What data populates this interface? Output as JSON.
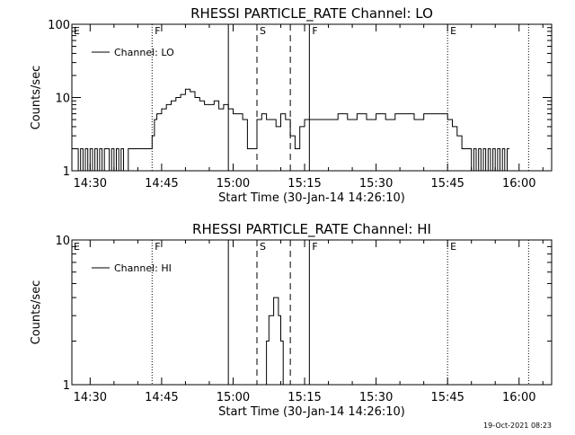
{
  "footer": {
    "timestamp": "19-Oct-2021 08:23"
  },
  "chart_data": [
    {
      "type": "line",
      "title": "RHESSI PARTICLE_RATE Channel: LO",
      "xlabel": "Start Time (30-Jan-14 14:26:10)",
      "ylabel": "Counts/sec",
      "yscale": "log",
      "ylim": [
        1,
        100
      ],
      "xlim": [
        "14:26:10",
        "16:06:50"
      ],
      "x_ticks": [
        "14:30",
        "14:45",
        "15:00",
        "15:15",
        "15:30",
        "15:45",
        "16:00"
      ],
      "y_ticks": [
        "1",
        "10",
        "100"
      ],
      "legend": {
        "label": "Channel: LO",
        "position": "top-left"
      },
      "event_markers": [
        {
          "time": "14:43:00",
          "label": "F",
          "style": "dotted"
        },
        {
          "time": "14:59:00",
          "label": "",
          "style": "solid"
        },
        {
          "time": "15:05:00",
          "label": "S",
          "style": "dashed"
        },
        {
          "time": "15:12:00",
          "label": "",
          "style": "dashed"
        },
        {
          "time": "15:16:00",
          "label": "F",
          "style": "solid"
        },
        {
          "time": "15:45:00",
          "label": "E",
          "style": "dotted"
        },
        {
          "time": "16:02:00",
          "label": "",
          "style": "dotted"
        }
      ],
      "series": [
        {
          "x": [
            "14:26:10",
            "14:27:00",
            "14:27:30",
            "14:28:00",
            "14:28:30",
            "14:29:00",
            "14:29:30",
            "14:30:00",
            "14:30:30",
            "14:31:00",
            "14:31:30",
            "14:32:00",
            "14:32:30",
            "14:33:00",
            "14:33:30",
            "14:34:00",
            "14:34:30",
            "14:35:00",
            "14:35:30",
            "14:36:00",
            "14:36:30",
            "14:37:00",
            "14:38:00",
            "14:39:00",
            "14:40:00",
            "14:41:00",
            "14:42:00",
            "14:42:40",
            "14:43:00",
            "14:43:30",
            "14:44:00",
            "14:45:00",
            "14:46:00",
            "14:47:00",
            "14:48:00",
            "14:49:00",
            "14:50:00",
            "14:51:00",
            "14:52:00",
            "14:53:00",
            "14:54:00",
            "14:55:00",
            "14:56:00",
            "14:57:00",
            "14:58:00",
            "14:59:00",
            "15:00:00",
            "15:01:00",
            "15:02:00",
            "15:03:00",
            "15:04:00",
            "15:05:00",
            "15:06:00",
            "15:07:00",
            "15:08:00",
            "15:09:00",
            "15:10:00",
            "15:11:00",
            "15:12:00",
            "15:13:00",
            "15:14:00",
            "15:15:00",
            "15:16:00",
            "15:17:00",
            "15:18:00",
            "15:20:00",
            "15:22:00",
            "15:24:00",
            "15:26:00",
            "15:28:00",
            "15:30:00",
            "15:32:00",
            "15:34:00",
            "15:36:00",
            "15:38:00",
            "15:40:00",
            "15:42:00",
            "15:44:00",
            "15:45:00",
            "15:46:00",
            "15:47:00",
            "15:48:00",
            "15:49:00",
            "15:50:00",
            "15:50:30",
            "15:51:00",
            "15:51:30",
            "15:52:00",
            "15:52:30",
            "15:53:00",
            "15:53:30",
            "15:54:00",
            "15:54:30",
            "15:55:00",
            "15:55:30",
            "15:56:00",
            "15:56:30",
            "15:57:00",
            "15:57:30",
            "15:58:00"
          ],
          "y": [
            2,
            2,
            1,
            2,
            1,
            2,
            1,
            2,
            1,
            2,
            1,
            2,
            1,
            2,
            2,
            1,
            2,
            1,
            2,
            1,
            2,
            1,
            2,
            2,
            2,
            2,
            2,
            2,
            3,
            5,
            6,
            7,
            8,
            9,
            10,
            11,
            13,
            12,
            10,
            9,
            8,
            8,
            9,
            7,
            8,
            7,
            6,
            6,
            5,
            2,
            2,
            5,
            6,
            5,
            5,
            4,
            6,
            5,
            3,
            2,
            4,
            5,
            5,
            5,
            5,
            5,
            6,
            5,
            6,
            5,
            6,
            5,
            6,
            6,
            5,
            6,
            6,
            6,
            5,
            4,
            3,
            2,
            2,
            1,
            2,
            1,
            2,
            1,
            2,
            1,
            2,
            1,
            2,
            1,
            2,
            1,
            2,
            1,
            2,
            2
          ]
        }
      ]
    },
    {
      "type": "line",
      "title": "RHESSI PARTICLE_RATE Channel: HI",
      "xlabel": "Start Time (30-Jan-14 14:26:10)",
      "ylabel": "Counts/sec",
      "yscale": "log",
      "ylim": [
        1,
        10
      ],
      "xlim": [
        "14:26:10",
        "16:06:50"
      ],
      "x_ticks": [
        "14:30",
        "14:45",
        "15:00",
        "15:15",
        "15:30",
        "15:45",
        "16:00"
      ],
      "y_ticks": [
        "1",
        "10"
      ],
      "legend": {
        "label": "Channel: HI",
        "position": "top-left"
      },
      "event_markers": [
        {
          "time": "14:43:00",
          "label": "F",
          "style": "dotted"
        },
        {
          "time": "14:59:00",
          "label": "",
          "style": "solid"
        },
        {
          "time": "15:05:00",
          "label": "S",
          "style": "dashed"
        },
        {
          "time": "15:12:00",
          "label": "",
          "style": "dashed"
        },
        {
          "time": "15:16:00",
          "label": "F",
          "style": "solid"
        },
        {
          "time": "15:45:00",
          "label": "E",
          "style": "dotted"
        },
        {
          "time": "16:02:00",
          "label": "",
          "style": "dotted"
        }
      ],
      "series": [
        {
          "x": [
            "15:06:00",
            "15:06:30",
            "15:07:00",
            "15:07:30",
            "15:08:00",
            "15:08:30",
            "15:09:00",
            "15:09:30",
            "15:10:00",
            "15:10:30"
          ],
          "y": [
            1,
            1,
            2,
            3,
            3,
            4,
            4,
            3,
            2,
            1
          ]
        }
      ]
    }
  ]
}
